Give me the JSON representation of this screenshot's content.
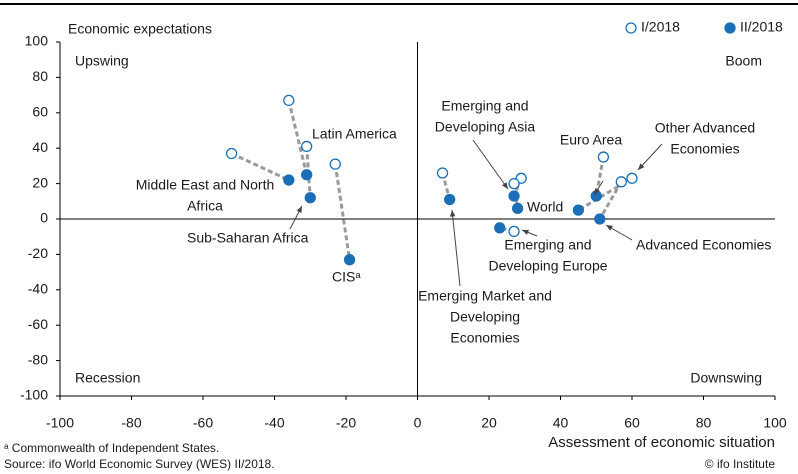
{
  "chart_data": {
    "type": "scatter",
    "y_axis_label": "Economic expectations",
    "x_axis_label": "Assessment of economic situation",
    "quadrants": [
      "Upswing",
      "Boom",
      "Recession",
      "Downswing"
    ],
    "categories": [
      [
        "Middle East and North",
        "Africa"
      ],
      [
        "Latin America"
      ],
      [
        "Sub-Saharan Africa"
      ],
      [
        "CISᵃ"
      ],
      [
        "Emerging Market and",
        "Developing",
        "Economies"
      ],
      [
        "Emerging and",
        "Developing Asia"
      ],
      [
        "World"
      ],
      [
        "Emerging and",
        "Developing Europe"
      ],
      [
        "Euro Area"
      ],
      [
        "Advanced Economies"
      ],
      [
        "Other Advanced",
        "Economies"
      ]
    ],
    "series": [
      {
        "name": "I/2018",
        "color": "#1a6fb6",
        "filled": false,
        "x": [
          -52,
          -36,
          -31,
          -23,
          7,
          29,
          27,
          27,
          52,
          57,
          60
        ],
        "values": [
          37,
          67,
          41,
          31,
          26,
          23,
          20,
          -7,
          35,
          21,
          23
        ]
      },
      {
        "name": "II/2018",
        "color": "#1a6fb6",
        "filled": true,
        "x": [
          -36,
          -31,
          -30,
          -19,
          9,
          27,
          28,
          23,
          50,
          51,
          45
        ],
        "values": [
          22,
          25,
          12,
          -23,
          11,
          13,
          6,
          -5,
          13,
          0,
          5
        ]
      }
    ],
    "connector_color": "#9a9a9a",
    "xlim": [
      -100,
      100
    ],
    "xticks": [
      -100,
      -80,
      -60,
      -40,
      -20,
      0,
      20,
      40,
      60,
      80,
      100
    ],
    "ylim": [
      -100,
      100
    ],
    "yticks": [
      -100,
      -80,
      -60,
      -40,
      -20,
      0,
      20,
      40,
      60,
      80,
      100
    ],
    "legend": "top-right",
    "footnotes": [
      "ᵃ Commonwealth of Independent States.",
      "Source: ifo World Economic Survey (WES) II/2018."
    ],
    "credit": "© ifo Institute"
  }
}
